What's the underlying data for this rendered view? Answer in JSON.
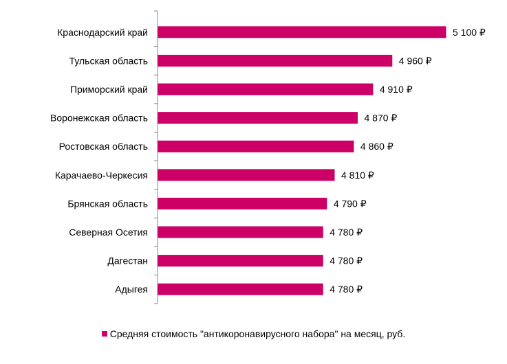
{
  "chart_data": {
    "type": "bar",
    "orientation": "horizontal",
    "categories": [
      "Краснодарский край",
      "Тульская область",
      "Приморский край",
      "Воронежская область",
      "Ростовская область",
      "Карачаево-Черкесия",
      "Брянская область",
      "Северная Осетия",
      "Дагестан",
      "Адыгея"
    ],
    "series": [
      {
        "name": "Средняя стоимость \"антикоронавирусного набора\" на месяц, руб.",
        "values": [
          5100,
          4960,
          4910,
          4870,
          4860,
          4810,
          4790,
          4780,
          4780,
          4780
        ],
        "value_labels": [
          "5 100 ₽",
          "4 960 ₽",
          "4 910 ₽",
          "4 870 ₽",
          "4 860 ₽",
          "4 810 ₽",
          "4 790 ₽",
          "4 780 ₽",
          "4 780 ₽",
          "4 780 ₽"
        ],
        "color": "#CC0066"
      }
    ],
    "xlim": [
      4350,
      5100
    ],
    "grid": false,
    "legend_position": "bottom"
  }
}
